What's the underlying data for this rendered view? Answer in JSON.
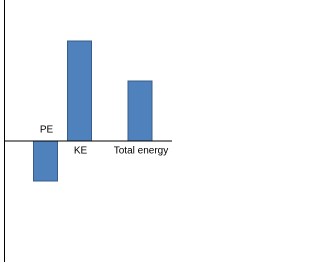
{
  "chart_data": {
    "type": "bar",
    "categories": [
      "PE",
      "KE",
      "Total energy"
    ],
    "values": [
      -40,
      100,
      60
    ],
    "color": "#4f81bd",
    "ylim": [
      -121,
      141
    ]
  }
}
